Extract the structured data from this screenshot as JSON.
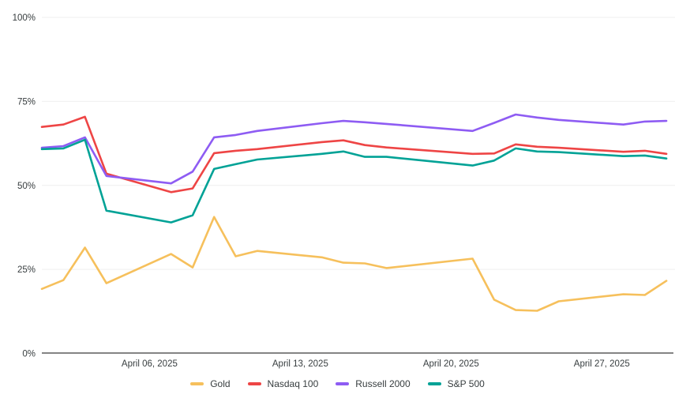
{
  "chart_data": {
    "type": "line",
    "title": "",
    "xlabel": "",
    "ylabel": "",
    "ylim": [
      0,
      100
    ],
    "grid": true,
    "legend_position": "bottom",
    "x_dates": [
      "2025-04-01",
      "2025-04-02",
      "2025-04-03",
      "2025-04-04",
      "2025-04-07",
      "2025-04-08",
      "2025-04-09",
      "2025-04-10",
      "2025-04-11",
      "2025-04-14",
      "2025-04-15",
      "2025-04-16",
      "2025-04-17",
      "2025-04-21",
      "2025-04-22",
      "2025-04-23",
      "2025-04-24",
      "2025-04-25",
      "2025-04-28",
      "2025-04-29",
      "2025-04-30"
    ],
    "series": [
      {
        "id": "gold",
        "name": "Gold",
        "color": "#F6C05C",
        "values": [
          19.2,
          21.8,
          31.5,
          20.9,
          29.6,
          25.6,
          40.6,
          28.9,
          30.5,
          28.6,
          27.0,
          26.8,
          25.4,
          28.2,
          16.0,
          12.9,
          12.7,
          15.5,
          17.6,
          17.4,
          21.6
        ]
      },
      {
        "id": "nasdaq-100",
        "name": "Nasdaq 100",
        "color": "#EE4545",
        "values": [
          67.4,
          68.1,
          70.4,
          53.5,
          48.0,
          49.1,
          59.6,
          60.3,
          60.8,
          62.9,
          63.4,
          62.0,
          61.3,
          59.4,
          59.5,
          62.2,
          61.5,
          61.2,
          60.0,
          60.3,
          59.4
        ]
      },
      {
        "id": "russell-2000",
        "name": "Russell 2000",
        "color": "#8E5CF3",
        "values": [
          61.2,
          61.7,
          64.3,
          52.8,
          50.6,
          54.1,
          64.3,
          65.0,
          66.2,
          68.5,
          69.2,
          68.8,
          68.3,
          66.2,
          68.6,
          71.1,
          70.2,
          69.5,
          68.1,
          69.0,
          69.2
        ]
      },
      {
        "id": "sp-500",
        "name": "S&P 500",
        "color": "#01A296",
        "values": [
          60.8,
          61.0,
          63.6,
          42.5,
          39.0,
          41.1,
          54.9,
          56.3,
          57.7,
          59.4,
          60.1,
          58.5,
          58.5,
          55.9,
          57.4,
          61.0,
          60.1,
          59.9,
          58.7,
          58.9,
          58.0
        ]
      }
    ],
    "y_ticks": [
      {
        "value": 0,
        "label": "0%"
      },
      {
        "value": 25,
        "label": "25%"
      },
      {
        "value": 50,
        "label": "50%"
      },
      {
        "value": 75,
        "label": "75%"
      },
      {
        "value": 100,
        "label": "100%"
      }
    ],
    "x_ticks": [
      {
        "day": 6,
        "label": "April 06, 2025"
      },
      {
        "day": 13,
        "label": "April 13, 2025"
      },
      {
        "day": 20,
        "label": "April 20, 2025"
      },
      {
        "day": 27,
        "label": "April 27, 2025"
      }
    ],
    "style": {
      "background": "#ffffff",
      "grid_color": "#efefef",
      "axis_line_color": "#3a3a3a",
      "label_color": "#373d3f"
    }
  }
}
